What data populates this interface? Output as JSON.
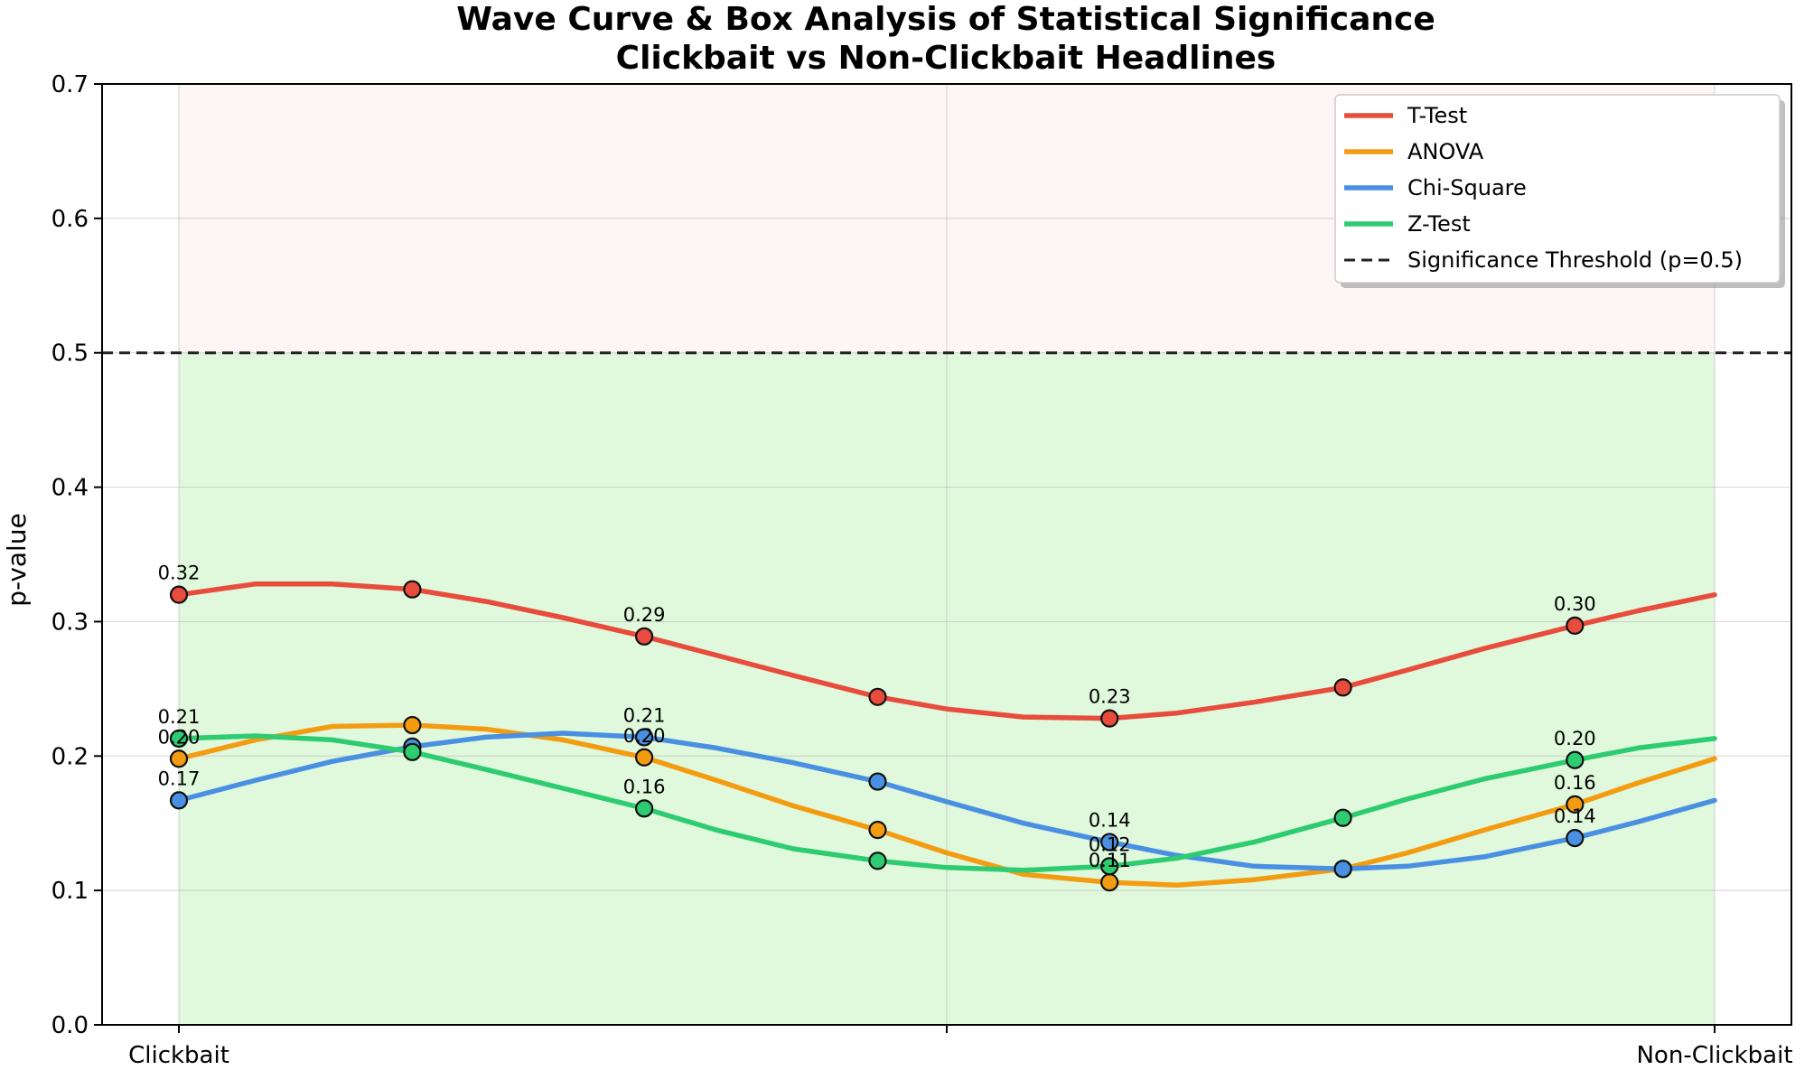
{
  "chart_data": {
    "type": "line",
    "title": "Wave Curve & Box Analysis of Statistical Significance",
    "subtitle": "Clickbait vs Non-Clickbait Headlines",
    "xlabel": "",
    "ylabel": "p-value",
    "ylim": [
      0,
      0.7
    ],
    "yticks": [
      "0.0",
      "0.1",
      "0.2",
      "0.3",
      "0.4",
      "0.5",
      "0.6",
      "0.7"
    ],
    "xlim": [
      -0.05,
      1.05
    ],
    "xticks": [
      {
        "pos": 0,
        "label": "Clickbait"
      },
      {
        "pos": 0.5,
        "label": ""
      },
      {
        "pos": 1,
        "label": "Non-Clickbait"
      }
    ],
    "grid": true,
    "legend_position": "top-right",
    "threshold": {
      "label": "Significance Threshold (p=0.5)",
      "value": 0.5,
      "color": "#222222"
    },
    "regions": [
      {
        "name": "not-significant",
        "from": 0.5,
        "to": 0.7,
        "color": "#fdecea"
      },
      {
        "name": "significant",
        "from": 0,
        "to": 0.5,
        "color": "#d5f5d0"
      }
    ],
    "series": [
      {
        "name": "T-Test",
        "color": "#e74c3c",
        "points": [
          [
            0,
            0.32
          ],
          [
            0.152,
            0.324
          ],
          [
            0.303,
            0.289
          ],
          [
            0.455,
            0.244
          ],
          [
            0.606,
            0.228
          ],
          [
            0.758,
            0.251
          ],
          [
            0.909,
            0.297
          ]
        ],
        "curve": [
          [
            0,
            0.32
          ],
          [
            0.05,
            0.328
          ],
          [
            0.1,
            0.328
          ],
          [
            0.152,
            0.324
          ],
          [
            0.2,
            0.315
          ],
          [
            0.25,
            0.303
          ],
          [
            0.303,
            0.289
          ],
          [
            0.35,
            0.275
          ],
          [
            0.4,
            0.26
          ],
          [
            0.455,
            0.244
          ],
          [
            0.5,
            0.235
          ],
          [
            0.55,
            0.229
          ],
          [
            0.606,
            0.228
          ],
          [
            0.65,
            0.232
          ],
          [
            0.7,
            0.24
          ],
          [
            0.758,
            0.251
          ],
          [
            0.8,
            0.264
          ],
          [
            0.85,
            0.28
          ],
          [
            0.909,
            0.297
          ],
          [
            0.95,
            0.308
          ],
          [
            1.0,
            0.32
          ]
        ],
        "labels": [
          {
            "i": 0,
            "text": "0.32"
          },
          {
            "i": 2,
            "text": "0.29"
          },
          {
            "i": 4,
            "text": "0.23"
          },
          {
            "i": 6,
            "text": "0.30"
          }
        ]
      },
      {
        "name": "ANOVA",
        "color": "#f39c12",
        "points": [
          [
            0,
            0.198
          ],
          [
            0.152,
            0.223
          ],
          [
            0.303,
            0.199
          ],
          [
            0.455,
            0.145
          ],
          [
            0.606,
            0.106
          ],
          [
            0.758,
            0.116
          ],
          [
            0.909,
            0.164
          ]
        ],
        "curve": [
          [
            0,
            0.198
          ],
          [
            0.05,
            0.212
          ],
          [
            0.1,
            0.222
          ],
          [
            0.152,
            0.223
          ],
          [
            0.2,
            0.22
          ],
          [
            0.25,
            0.212
          ],
          [
            0.303,
            0.199
          ],
          [
            0.35,
            0.182
          ],
          [
            0.4,
            0.163
          ],
          [
            0.455,
            0.145
          ],
          [
            0.5,
            0.128
          ],
          [
            0.55,
            0.112
          ],
          [
            0.606,
            0.106
          ],
          [
            0.65,
            0.104
          ],
          [
            0.7,
            0.108
          ],
          [
            0.758,
            0.116
          ],
          [
            0.8,
            0.128
          ],
          [
            0.85,
            0.145
          ],
          [
            0.909,
            0.164
          ],
          [
            0.95,
            0.18
          ],
          [
            1.0,
            0.198
          ]
        ],
        "labels": [
          {
            "i": 0,
            "text": "0.20"
          },
          {
            "i": 2,
            "text": "0.20"
          },
          {
            "i": 4,
            "text": "0.11"
          },
          {
            "i": 6,
            "text": "0.16"
          }
        ]
      },
      {
        "name": "Chi-Square",
        "color": "#4a90e2",
        "points": [
          [
            0,
            0.167
          ],
          [
            0.152,
            0.207
          ],
          [
            0.303,
            0.214
          ],
          [
            0.455,
            0.181
          ],
          [
            0.606,
            0.136
          ],
          [
            0.758,
            0.116
          ],
          [
            0.909,
            0.139
          ]
        ],
        "curve": [
          [
            0,
            0.167
          ],
          [
            0.05,
            0.182
          ],
          [
            0.1,
            0.196
          ],
          [
            0.152,
            0.207
          ],
          [
            0.2,
            0.214
          ],
          [
            0.25,
            0.217
          ],
          [
            0.303,
            0.214
          ],
          [
            0.35,
            0.206
          ],
          [
            0.4,
            0.195
          ],
          [
            0.455,
            0.181
          ],
          [
            0.5,
            0.166
          ],
          [
            0.55,
            0.15
          ],
          [
            0.606,
            0.136
          ],
          [
            0.65,
            0.126
          ],
          [
            0.7,
            0.118
          ],
          [
            0.758,
            0.116
          ],
          [
            0.8,
            0.118
          ],
          [
            0.85,
            0.125
          ],
          [
            0.909,
            0.139
          ],
          [
            0.95,
            0.151
          ],
          [
            1.0,
            0.167
          ]
        ],
        "labels": [
          {
            "i": 0,
            "text": "0.17"
          },
          {
            "i": 2,
            "text": "0.21"
          },
          {
            "i": 4,
            "text": "0.14"
          },
          {
            "i": 6,
            "text": "0.14"
          }
        ]
      },
      {
        "name": "Z-Test",
        "color": "#2ecc71",
        "points": [
          [
            0,
            0.213
          ],
          [
            0.152,
            0.203
          ],
          [
            0.303,
            0.161
          ],
          [
            0.455,
            0.122
          ],
          [
            0.606,
            0.118
          ],
          [
            0.758,
            0.154
          ],
          [
            0.909,
            0.197
          ]
        ],
        "curve": [
          [
            0,
            0.213
          ],
          [
            0.05,
            0.215
          ],
          [
            0.1,
            0.212
          ],
          [
            0.152,
            0.203
          ],
          [
            0.2,
            0.19
          ],
          [
            0.25,
            0.176
          ],
          [
            0.303,
            0.161
          ],
          [
            0.35,
            0.145
          ],
          [
            0.4,
            0.131
          ],
          [
            0.455,
            0.122
          ],
          [
            0.5,
            0.117
          ],
          [
            0.55,
            0.115
          ],
          [
            0.606,
            0.118
          ],
          [
            0.65,
            0.124
          ],
          [
            0.7,
            0.136
          ],
          [
            0.758,
            0.154
          ],
          [
            0.8,
            0.168
          ],
          [
            0.85,
            0.183
          ],
          [
            0.909,
            0.197
          ],
          [
            0.95,
            0.206
          ],
          [
            1.0,
            0.213
          ]
        ],
        "labels": [
          {
            "i": 0,
            "text": "0.21"
          },
          {
            "i": 2,
            "text": "0.16"
          },
          {
            "i": 4,
            "text": "0.12"
          },
          {
            "i": 6,
            "text": "0.20"
          }
        ]
      }
    ]
  }
}
